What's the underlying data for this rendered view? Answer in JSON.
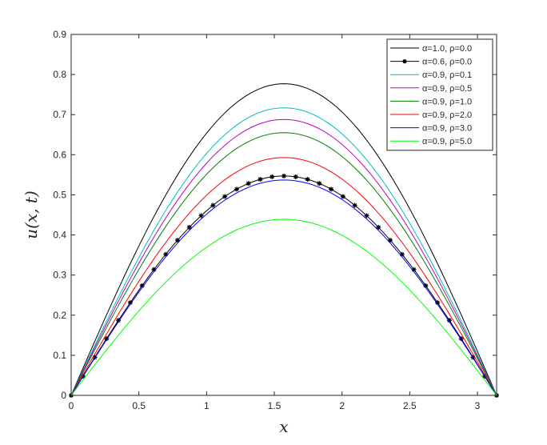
{
  "chart_data": {
    "type": "line",
    "xlabel": "x",
    "ylabel": "u(x, t)",
    "xlim": [
      0,
      3.1416
    ],
    "ylim": [
      0,
      0.9
    ],
    "x_ticks": [
      "0",
      "0.5",
      "1",
      "1.5",
      "2",
      "2.5",
      "3"
    ],
    "y_ticks": [
      "0",
      "0.1",
      "0.2",
      "0.3",
      "0.4",
      "0.5",
      "0.6",
      "0.7",
      "0.8",
      "0.9"
    ],
    "grid": false,
    "legend_position": "top-right",
    "series": [
      {
        "name": "α=1.0, ρ=0.0",
        "color": "#000000",
        "peak": 0.777,
        "marker": "none"
      },
      {
        "name": "α=0.6, ρ=0.0",
        "color": "#000000",
        "peak": 0.547,
        "marker": "asterisk"
      },
      {
        "name": "α=0.9, ρ=0.1",
        "color": "#00bfbf",
        "peak": 0.717,
        "marker": "none"
      },
      {
        "name": "α=0.9, ρ=0.5",
        "color": "#bf00bf",
        "peak": 0.688,
        "marker": "none"
      },
      {
        "name": "α=0.9, ρ=1.0",
        "color": "#008000",
        "peak": 0.655,
        "marker": "none"
      },
      {
        "name": "α=0.9, ρ=2.0",
        "color": "#ff0000",
        "peak": 0.593,
        "marker": "none"
      },
      {
        "name": "α=0.9, ρ=3.0",
        "color": "#0000ff",
        "peak": 0.537,
        "marker": "none"
      },
      {
        "name": "α=0.9, ρ=5.0",
        "color": "#00ff00",
        "peak": 0.439,
        "marker": "none"
      }
    ]
  }
}
